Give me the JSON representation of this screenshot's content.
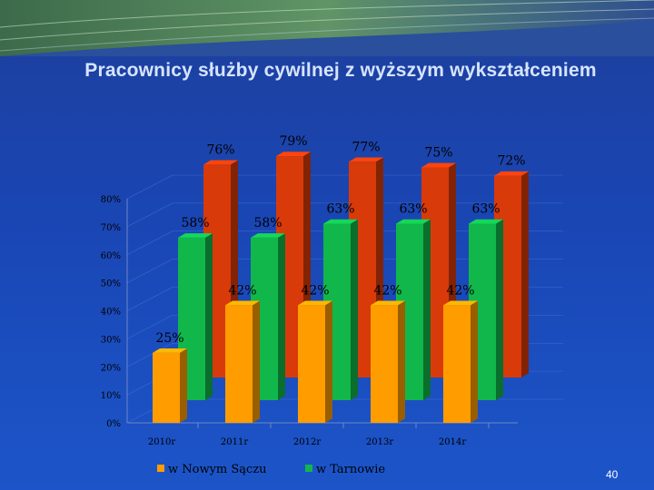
{
  "slide": {
    "title": "Pracownicy służby cywilnej z wyższym wykształceniem",
    "page_number": "40"
  },
  "colors": {
    "nowy_sacz": "#ff9c00",
    "tarnow": "#11b74a",
    "back": "#d83a0a",
    "axis_text": "#000000"
  },
  "chart_data": {
    "type": "bar",
    "title": "",
    "xlabel": "",
    "ylabel": "",
    "ylim": [
      0,
      80
    ],
    "yticks": [
      0,
      10,
      20,
      30,
      40,
      50,
      60,
      70,
      80
    ],
    "ytick_labels": [
      "0%",
      "10%",
      "20%",
      "30%",
      "40%",
      "50%",
      "60%",
      "70%",
      "80%"
    ],
    "categories": [
      "2010r",
      "2011r",
      "2012r",
      "2013r",
      "2014r"
    ],
    "series": [
      {
        "name": "w Nowym Sączu",
        "values": [
          25,
          42,
          42,
          42,
          42
        ],
        "labels": [
          "25%",
          "42%",
          "42%",
          "42%",
          "42%"
        ],
        "legend": true
      },
      {
        "name": "w Tarnowie",
        "values": [
          58,
          58,
          63,
          63,
          63
        ],
        "labels": [
          "58%",
          "58%",
          "63%",
          "63%",
          "63%"
        ],
        "legend": true
      },
      {
        "values": [
          76,
          79,
          77,
          75,
          72
        ],
        "labels": [
          "76%",
          "79%",
          "77%",
          "75%",
          "72%"
        ],
        "legend": false
      }
    ],
    "legend_position": "bottom",
    "grid": true,
    "projection": "3d"
  }
}
